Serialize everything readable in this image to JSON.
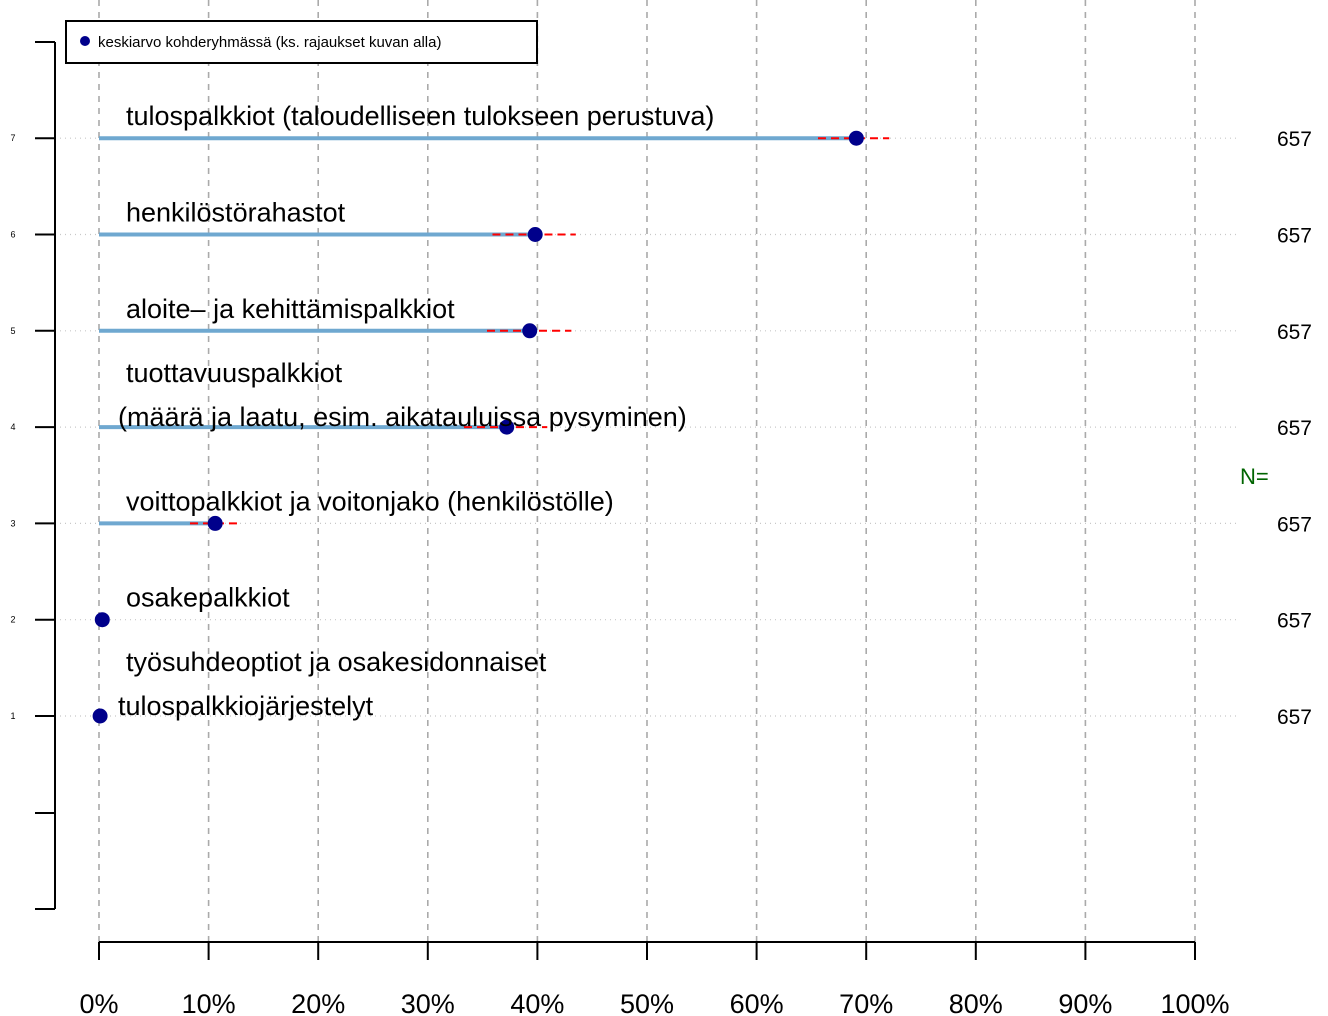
{
  "legend": {
    "label": "keskiarvo kohderyhmässä (ks. rajaukset kuvan alla)"
  },
  "n_label": "N=",
  "colors": {
    "bar": "#6fa8d0",
    "point": "#00008b",
    "interval": "#ff0000",
    "grid": "#aaaaaa",
    "n_label": "#006400"
  },
  "chart_data": {
    "type": "bar",
    "orientation": "horizontal",
    "xlim": [
      0,
      100
    ],
    "x_unit": "%",
    "x_ticks": [
      "0%",
      "10%",
      "20%",
      "30%",
      "40%",
      "50%",
      "60%",
      "70%",
      "80%",
      "90%",
      "100%"
    ],
    "y_ticks": [
      "1",
      "2",
      "3",
      "4",
      "5",
      "6",
      "7"
    ],
    "grid": "vertical dashed",
    "legend_position": "top-left",
    "items": [
      {
        "pos": 7,
        "label_lines": [
          "tulospalkkiot (taloudelliseen tulokseen perustuva)"
        ],
        "value": 69.1,
        "ci": [
          65.6,
          72.1
        ],
        "n": "657"
      },
      {
        "pos": 6,
        "label_lines": [
          "henkilöstörahastot"
        ],
        "value": 39.8,
        "ci": [
          35.9,
          43.5
        ],
        "n": "657"
      },
      {
        "pos": 5,
        "label_lines": [
          "aloite– ja kehittämispalkkiot"
        ],
        "value": 39.3,
        "ci": [
          35.4,
          43.1
        ],
        "n": "657"
      },
      {
        "pos": 4,
        "label_lines": [
          "tuottavuuspalkkiot",
          "(määrä ja laatu, esim. aikatauluissa pysyminen)"
        ],
        "value": 37.2,
        "ci": [
          33.3,
          40.9
        ],
        "n": "657"
      },
      {
        "pos": 3,
        "label_lines": [
          "voittopalkkiot ja voitonjako (henkilöstölle)"
        ],
        "value": 10.6,
        "ci": [
          8.3,
          13.0
        ],
        "n": "657"
      },
      {
        "pos": 2,
        "label_lines": [
          "osakepalkkiot"
        ],
        "value": 0.3,
        "ci": [
          0.0,
          0.9
        ],
        "n": "657"
      },
      {
        "pos": 1,
        "label_lines": [
          "työsuhdeoptiot ja osakesidonnaiset",
          "tulospalkkiojärjestelyt"
        ],
        "value": 0.1,
        "ci": [
          0.0,
          0.6
        ],
        "n": "657"
      }
    ]
  }
}
